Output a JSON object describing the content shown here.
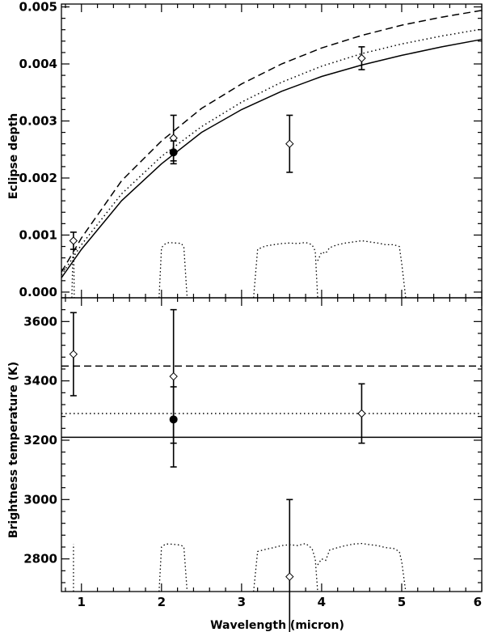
{
  "chart_data": [
    {
      "type": "line",
      "ylabel": "Eclipse depth",
      "xlabel": "",
      "xlim": [
        0.75,
        6.0
      ],
      "ylim": [
        -0.0001,
        0.00505
      ],
      "x_ticks": [
        1,
        2,
        3,
        4,
        5,
        6
      ],
      "x_tick_labels": [
        "",
        "",
        "",
        "",
        "",
        ""
      ],
      "y_ticks": [
        0.0,
        0.001,
        0.002,
        0.003,
        0.004,
        0.005
      ],
      "y_tick_labels": [
        "0.000",
        "0.001",
        "0.002",
        "0.003",
        "0.004",
        "0.005"
      ],
      "lines": [
        {
          "style": "solid",
          "x": [
            0.75,
            1.0,
            1.5,
            2.0,
            2.5,
            3.0,
            3.5,
            4.0,
            4.5,
            5.0,
            5.5,
            6.0
          ],
          "y": [
            0.00025,
            0.00075,
            0.0016,
            0.00225,
            0.0028,
            0.0032,
            0.00352,
            0.00378,
            0.00398,
            0.00415,
            0.0043,
            0.00443
          ]
        },
        {
          "style": "dotted",
          "x": [
            0.75,
            1.0,
            1.5,
            2.0,
            2.5,
            3.0,
            3.5,
            4.0,
            4.5,
            5.0,
            5.5,
            6.0
          ],
          "y": [
            0.0003,
            0.00083,
            0.00172,
            0.00238,
            0.0029,
            0.00333,
            0.00368,
            0.00396,
            0.00418,
            0.00435,
            0.00449,
            0.00461
          ]
        },
        {
          "style": "dashed",
          "x": [
            0.75,
            1.0,
            1.5,
            2.0,
            2.5,
            3.0,
            3.5,
            4.0,
            4.5,
            5.0,
            5.5,
            6.0
          ],
          "y": [
            0.00035,
            0.00095,
            0.00195,
            0.00265,
            0.00322,
            0.00365,
            0.004,
            0.00428,
            0.0045,
            0.00468,
            0.00482,
            0.00494
          ]
        }
      ],
      "points": [
        {
          "x": 0.9,
          "y": 0.0009,
          "yerr": 0.00015,
          "marker": "diamond"
        },
        {
          "x": 2.15,
          "y": 0.0027,
          "yerr": 0.0004,
          "marker": "diamond"
        },
        {
          "x": 2.15,
          "y": 0.00245,
          "yerr": 0.0002,
          "marker": "filled-circle"
        },
        {
          "x": 3.6,
          "y": 0.0026,
          "yerr": 0.0005,
          "marker": "diamond"
        },
        {
          "x": 4.5,
          "y": 0.0041,
          "yerr": 0.0002,
          "marker": "diamond"
        }
      ],
      "bandpass_outlines": [
        {
          "x": [
            0.88,
            0.89,
            0.9,
            0.905,
            0.91
          ],
          "y": [
            -0.0001,
            0.0005,
            0.0008,
            0.0005,
            -0.0001
          ]
        },
        {
          "x": [
            1.97,
            2.0,
            2.05,
            2.1,
            2.15,
            2.2,
            2.25,
            2.28,
            2.32
          ],
          "y": [
            -0.0001,
            0.00078,
            0.00085,
            0.00087,
            0.00086,
            0.00086,
            0.00085,
            0.00078,
            -0.0001
          ]
        },
        {
          "x": [
            3.15,
            3.2,
            3.3,
            3.4,
            3.5,
            3.6,
            3.7,
            3.8,
            3.88,
            3.92,
            3.95
          ],
          "y": [
            -0.0001,
            0.00075,
            0.00081,
            0.00083,
            0.00085,
            0.00086,
            0.00085,
            0.00087,
            0.00083,
            0.00072,
            -0.0001
          ]
        },
        {
          "x": [
            3.95,
            4.0,
            4.05,
            4.1,
            4.2,
            4.3,
            4.4,
            4.5,
            4.6,
            4.7,
            4.8,
            4.9,
            4.97,
            5.0,
            5.05
          ],
          "y": [
            0.00055,
            0.0007,
            0.00068,
            0.00078,
            0.00083,
            0.00086,
            0.00088,
            0.0009,
            0.00088,
            0.00086,
            0.00083,
            0.00083,
            0.0008,
            0.0005,
            -0.0001
          ]
        }
      ]
    },
    {
      "type": "scatter",
      "ylabel": "Brightness temperature (K)",
      "xlabel": "Wavelength (micron)",
      "xlim": [
        0.75,
        6.0
      ],
      "ylim": [
        2690,
        3680
      ],
      "x_ticks": [
        1,
        2,
        3,
        4,
        5,
        6
      ],
      "x_tick_labels": [
        "1",
        "2",
        "3",
        "4",
        "5",
        "6"
      ],
      "y_ticks": [
        2800,
        3000,
        3200,
        3400,
        3600
      ],
      "y_tick_labels": [
        "2800",
        "3000",
        "3200",
        "3400",
        "3600"
      ],
      "hlines": [
        {
          "style": "dashed",
          "y": 3450
        },
        {
          "style": "dotted",
          "y": 3290
        },
        {
          "style": "solid",
          "y": 3210
        }
      ],
      "points": [
        {
          "x": 0.9,
          "y": 3490,
          "yerr": 140,
          "marker": "diamond"
        },
        {
          "x": 2.15,
          "y": 3415,
          "yerr": 225,
          "marker": "diamond"
        },
        {
          "x": 2.15,
          "y": 3270,
          "yerr_low": 160,
          "yerr_high": 110,
          "marker": "filled-circle"
        },
        {
          "x": 3.6,
          "y": 2740,
          "yerr": 260,
          "marker": "diamond"
        },
        {
          "x": 4.5,
          "y": 3290,
          "yerr": 100,
          "marker": "diamond"
        }
      ],
      "bandpass_outlines": [
        {
          "x": [
            0.9,
            0.9
          ],
          "y": [
            2690,
            2850
          ]
        },
        {
          "x": [
            1.97,
            2.0,
            2.05,
            2.1,
            2.2,
            2.25,
            2.28,
            2.32
          ],
          "y": [
            2690,
            2840,
            2850,
            2850,
            2848,
            2845,
            2840,
            2690
          ]
        },
        {
          "x": [
            3.15,
            3.2,
            3.3,
            3.4,
            3.5,
            3.6,
            3.7,
            3.8,
            3.88,
            3.92,
            3.95
          ],
          "y": [
            2690,
            2825,
            2832,
            2838,
            2845,
            2848,
            2845,
            2852,
            2835,
            2800,
            2690
          ]
        },
        {
          "x": [
            3.95,
            4.0,
            4.05,
            4.1,
            4.2,
            4.3,
            4.4,
            4.5,
            4.6,
            4.7,
            4.8,
            4.9,
            4.97,
            5.0,
            5.05
          ],
          "y": [
            2780,
            2800,
            2795,
            2830,
            2838,
            2845,
            2850,
            2852,
            2848,
            2845,
            2838,
            2835,
            2825,
            2790,
            2690
          ]
        }
      ]
    }
  ]
}
